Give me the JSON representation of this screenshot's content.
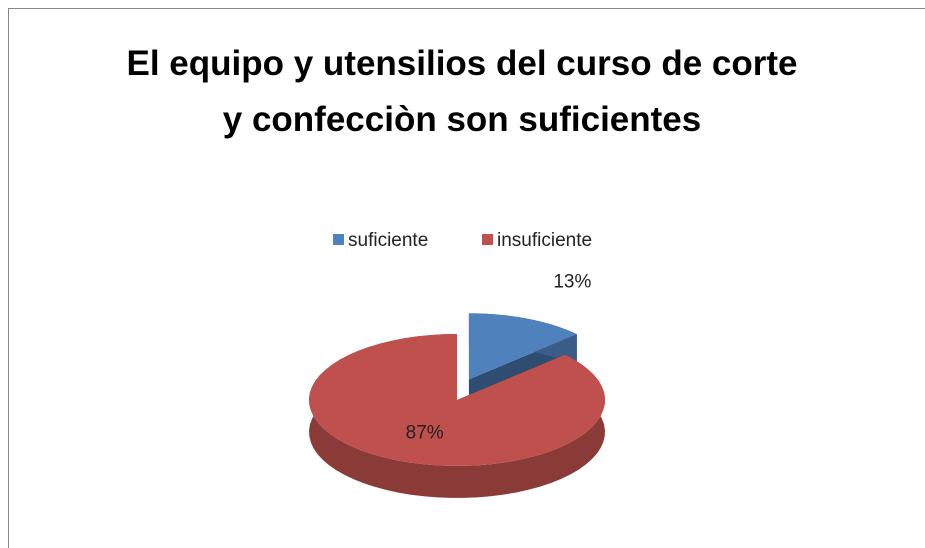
{
  "chart_data": {
    "type": "pie",
    "title": "El equipo y utensilios del curso de corte y confecciòn son suficientes",
    "categories": [
      "suficiente",
      "insuficiente"
    ],
    "values": [
      13,
      87
    ],
    "value_labels": [
      "13%",
      "87%"
    ],
    "colors": [
      "#4f81bd",
      "#c0504d"
    ],
    "legend": "top"
  }
}
